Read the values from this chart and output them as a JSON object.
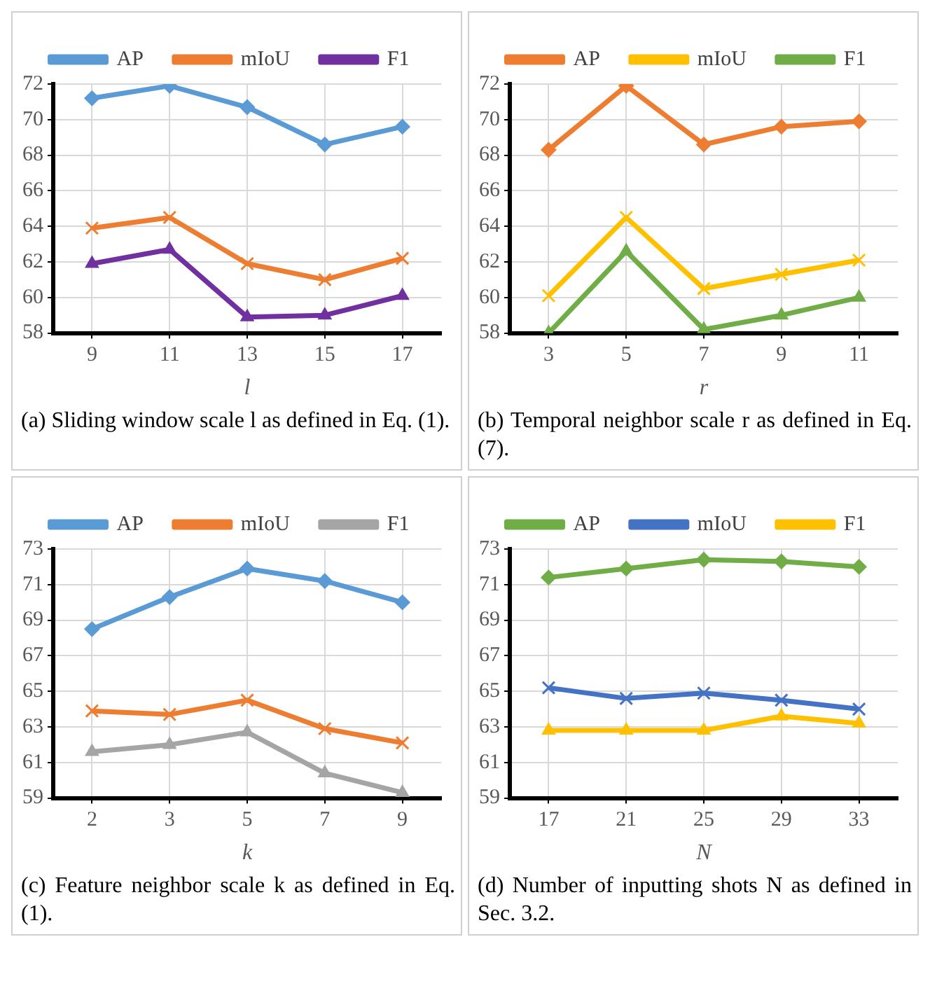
{
  "chart_data": [
    {
      "type": "line",
      "categories": [
        "9",
        "11",
        "13",
        "15",
        "17"
      ],
      "xlabel": "l",
      "ylim": [
        58,
        72
      ],
      "yticks": [
        58,
        60,
        62,
        64,
        66,
        68,
        70,
        72
      ],
      "grid": true,
      "legend": "top",
      "series": [
        {
          "name": "AP",
          "color": "#5b9bd5",
          "marker": "diamond",
          "values": [
            71.2,
            71.9,
            70.7,
            68.6,
            69.6
          ]
        },
        {
          "name": "mIoU",
          "color": "#ed7d31",
          "marker": "cross",
          "values": [
            63.9,
            64.5,
            61.9,
            61.0,
            62.2
          ]
        },
        {
          "name": "F1",
          "color": "#7030a0",
          "marker": "triangle",
          "values": [
            61.9,
            62.7,
            58.9,
            59.0,
            60.1
          ]
        }
      ],
      "annotations": [
        "(a) Sliding window scale l as defined in Eq. (1)."
      ]
    },
    {
      "type": "line",
      "categories": [
        "3",
        "5",
        "7",
        "9",
        "11"
      ],
      "xlabel": "r",
      "ylim": [
        58,
        72
      ],
      "yticks": [
        58,
        60,
        62,
        64,
        66,
        68,
        70,
        72
      ],
      "grid": true,
      "legend": "top",
      "series": [
        {
          "name": "AP",
          "color": "#ed7d31",
          "marker": "diamond",
          "values": [
            68.3,
            71.9,
            68.6,
            69.6,
            69.9
          ]
        },
        {
          "name": "mIoU",
          "color": "#ffc000",
          "marker": "cross",
          "values": [
            60.1,
            64.5,
            60.5,
            61.3,
            62.1
          ]
        },
        {
          "name": "F1",
          "color": "#70ad47",
          "marker": "triangle",
          "values": [
            58.0,
            62.6,
            58.2,
            59.0,
            60.0
          ]
        }
      ],
      "annotations": [
        "(b) Temporal neighbor scale r as defined in Eq. (7)."
      ]
    },
    {
      "type": "line",
      "categories": [
        "2",
        "3",
        "5",
        "7",
        "9"
      ],
      "xlabel": "k",
      "ylim": [
        59,
        73
      ],
      "yticks": [
        59,
        61,
        63,
        65,
        67,
        69,
        71,
        73
      ],
      "grid": true,
      "legend": "top",
      "series": [
        {
          "name": "AP",
          "color": "#5b9bd5",
          "marker": "diamond",
          "values": [
            68.5,
            70.3,
            71.9,
            71.2,
            70.0
          ]
        },
        {
          "name": "mIoU",
          "color": "#ed7d31",
          "marker": "cross",
          "values": [
            63.9,
            63.7,
            64.5,
            62.9,
            62.1
          ]
        },
        {
          "name": "F1",
          "color": "#a5a5a5",
          "marker": "triangle",
          "values": [
            61.6,
            62.0,
            62.7,
            60.4,
            59.3
          ]
        }
      ],
      "annotations": [
        "(c) Feature neighbor scale k as defined in Eq. (1)."
      ]
    },
    {
      "type": "line",
      "categories": [
        "17",
        "21",
        "25",
        "29",
        "33"
      ],
      "xlabel": "N",
      "ylim": [
        59,
        73
      ],
      "yticks": [
        59,
        61,
        63,
        65,
        67,
        69,
        71,
        73
      ],
      "grid": true,
      "legend": "top",
      "series": [
        {
          "name": "AP",
          "color": "#70ad47",
          "marker": "diamond",
          "values": [
            71.4,
            71.9,
            72.4,
            72.3,
            72.0
          ]
        },
        {
          "name": "mIoU",
          "color": "#4472c4",
          "marker": "cross",
          "values": [
            65.2,
            64.6,
            64.9,
            64.5,
            64.0
          ]
        },
        {
          "name": "F1",
          "color": "#ffc000",
          "marker": "triangle",
          "values": [
            62.8,
            62.8,
            62.8,
            63.6,
            63.2
          ]
        }
      ],
      "annotations": [
        "(d) Number of inputting shots N as defined in Sec. 3.2."
      ]
    }
  ]
}
